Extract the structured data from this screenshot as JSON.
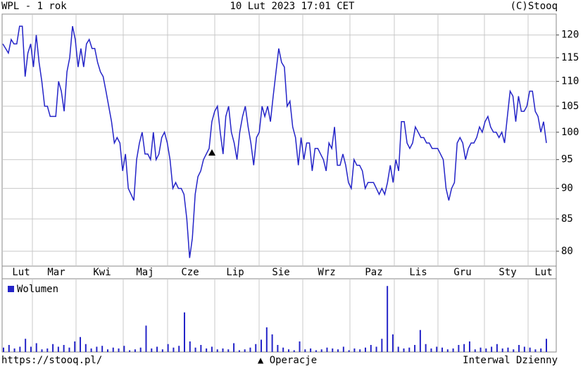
{
  "header": {
    "left": "WPL - 1 rok",
    "center": "10 Lut 2023 17:01 CET",
    "right": "(C)Stooq"
  },
  "footer": {
    "left": "https://stooq.pl/",
    "center": "▲ Operacje",
    "right": "Interwal Dzienny"
  },
  "chart_data": [
    {
      "type": "line",
      "color": "#2424c8",
      "log_scale": true,
      "grid": true,
      "months": [
        "Lut",
        "Mar",
        "Kwi",
        "Maj",
        "Cze",
        "Lip",
        "Sie",
        "Wrz",
        "Paz",
        "Lis",
        "Gru",
        "Sty",
        "Lut"
      ],
      "ylim": [
        77.8,
        124.8
      ],
      "yticks": [
        80,
        85,
        90,
        95,
        100,
        105,
        110,
        115,
        120
      ],
      "values": [
        118,
        117,
        116,
        119,
        118,
        118,
        122,
        122,
        111,
        116,
        118,
        113,
        120,
        114,
        110,
        105,
        105,
        103,
        103,
        103,
        110,
        108,
        104,
        112,
        115,
        122,
        119,
        113,
        117,
        113,
        118,
        119,
        117,
        117,
        114,
        112,
        111,
        108,
        105,
        102,
        98,
        99,
        98,
        93,
        96,
        90,
        89,
        88,
        95,
        98,
        100,
        96,
        96,
        95,
        100,
        95,
        96,
        99,
        100,
        98,
        95,
        90,
        91,
        90,
        90,
        89,
        85,
        79,
        82,
        89,
        92,
        93,
        95,
        96,
        97,
        102,
        104,
        105,
        100,
        96,
        103,
        105,
        100,
        98,
        95,
        100,
        103,
        105,
        101,
        98,
        94,
        99,
        100,
        105,
        103,
        105,
        102,
        107,
        112,
        117,
        114,
        113,
        105,
        106,
        101,
        99,
        94,
        99,
        95,
        98,
        98,
        93,
        97,
        97,
        96,
        95,
        93,
        98,
        97,
        101,
        94,
        94,
        96,
        94,
        91,
        90,
        95,
        94,
        94,
        93,
        90,
        91,
        91,
        91,
        90,
        89,
        90,
        89,
        91,
        94,
        91,
        95,
        93,
        102,
        102,
        98,
        97,
        98,
        101,
        100,
        99,
        99,
        98,
        98,
        97,
        97,
        97,
        96,
        95,
        90,
        88,
        90,
        91,
        98,
        99,
        98,
        95,
        97,
        98,
        98,
        99,
        101,
        100,
        102,
        103,
        101,
        100,
        100,
        99,
        100,
        98,
        103,
        108,
        107,
        102,
        107,
        104,
        104,
        105,
        108,
        108,
        104,
        103,
        100,
        102,
        98
      ]
    },
    {
      "type": "bar",
      "color": "#2424c8",
      "ylim": [
        0,
        80
      ],
      "series": [
        {
          "name": "Wolumen",
          "color": "#2424c8",
          "values": [
            5,
            8,
            4,
            6,
            15,
            6,
            10,
            3,
            4,
            9,
            6,
            8,
            5,
            12,
            17,
            9,
            4,
            6,
            7,
            3,
            5,
            4,
            7,
            2,
            3,
            5,
            30,
            4,
            6,
            3,
            9,
            5,
            7,
            45,
            12,
            5,
            8,
            4,
            6,
            3,
            4,
            3,
            10,
            2,
            3,
            5,
            9,
            14,
            28,
            20,
            8,
            5,
            3,
            2,
            12,
            3,
            4,
            2,
            3,
            5,
            4,
            3,
            6,
            2,
            4,
            3,
            5,
            8,
            6,
            15,
            75,
            20,
            6,
            4,
            5,
            8,
            25,
            9,
            4,
            6,
            5,
            3,
            4,
            8,
            9,
            12,
            3,
            5,
            4,
            6,
            9,
            4,
            5,
            3,
            8,
            6,
            5,
            3,
            4,
            15
          ]
        }
      ]
    }
  ]
}
